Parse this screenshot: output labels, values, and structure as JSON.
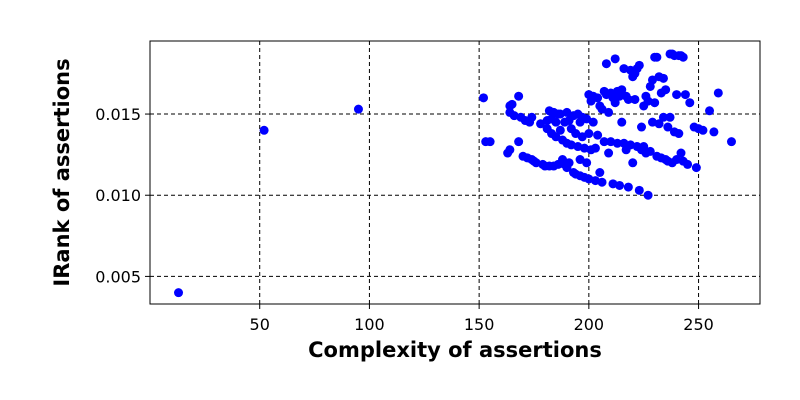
{
  "chart_data": {
    "type": "scatter",
    "title": "",
    "xlabel": "Complexity of assertions",
    "ylabel": "IRank of assertions",
    "xlim": [
      0,
      278
    ],
    "ylim": [
      0.0033,
      0.0195
    ],
    "xticks": [
      50,
      100,
      150,
      200,
      250
    ],
    "yticks": [
      0.005,
      0.01,
      0.015
    ],
    "xtick_labels": [
      "50",
      "100",
      "150",
      "200",
      "250"
    ],
    "ytick_labels": [
      "0.005",
      "0.010",
      "0.015"
    ],
    "grid": true,
    "grid_style": "dashed",
    "marker_color": "#0000ff",
    "series": [
      {
        "x": [
          13,
          52,
          95,
          152,
          153,
          155,
          163,
          164,
          164,
          164,
          165,
          166,
          168,
          168,
          169,
          170,
          171,
          172,
          173,
          174,
          174,
          175,
          176,
          178,
          179,
          180,
          181,
          181,
          182,
          182,
          183,
          183,
          184,
          184,
          185,
          185,
          186,
          186,
          187,
          187,
          188,
          188,
          189,
          189,
          190,
          190,
          190,
          191,
          191,
          192,
          192,
          193,
          193,
          194,
          194,
          195,
          195,
          196,
          196,
          196,
          197,
          197,
          198,
          198,
          199,
          199,
          200,
          200,
          200,
          201,
          201,
          202,
          202,
          203,
          203,
          204,
          204,
          205,
          205,
          206,
          206,
          207,
          207,
          208,
          208,
          209,
          209,
          210,
          210,
          211,
          211,
          212,
          212,
          213,
          213,
          214,
          214,
          215,
          215,
          216,
          216,
          217,
          217,
          218,
          218,
          219,
          219,
          220,
          220,
          221,
          221,
          222,
          222,
          223,
          223,
          224,
          224,
          225,
          225,
          226,
          226,
          227,
          227,
          228,
          228,
          229,
          229,
          230,
          230,
          231,
          231,
          232,
          232,
          233,
          233,
          234,
          234,
          235,
          235,
          236,
          236,
          237,
          237,
          238,
          238,
          239,
          239,
          240,
          240,
          241,
          241,
          242,
          242,
          243,
          243,
          244,
          245,
          246,
          248,
          249,
          250,
          252,
          255,
          257,
          259,
          265
        ],
        "y": [
          0.004,
          0.014,
          0.0153,
          0.016,
          0.0133,
          0.0133,
          0.0126,
          0.0128,
          0.0155,
          0.0151,
          0.0156,
          0.0149,
          0.0161,
          0.0133,
          0.0148,
          0.0124,
          0.0146,
          0.0123,
          0.0145,
          0.0122,
          0.0148,
          0.0121,
          0.012,
          0.0144,
          0.0119,
          0.0118,
          0.0141,
          0.0146,
          0.0152,
          0.0118,
          0.0138,
          0.0147,
          0.0151,
          0.0118,
          0.0136,
          0.0145,
          0.015,
          0.0119,
          0.014,
          0.015,
          0.0134,
          0.0122,
          0.0145,
          0.0119,
          0.0151,
          0.0132,
          0.0117,
          0.0146,
          0.012,
          0.0141,
          0.0131,
          0.0149,
          0.0114,
          0.0138,
          0.0113,
          0.015,
          0.013,
          0.0145,
          0.0112,
          0.0122,
          0.0148,
          0.0136,
          0.0129,
          0.0111,
          0.0147,
          0.012,
          0.0162,
          0.0138,
          0.011,
          0.0158,
          0.0128,
          0.0161,
          0.0145,
          0.0129,
          0.0109,
          0.016,
          0.0137,
          0.0155,
          0.0114,
          0.0153,
          0.0108,
          0.0164,
          0.0133,
          0.0181,
          0.0162,
          0.0151,
          0.0126,
          0.0163,
          0.0133,
          0.016,
          0.0107,
          0.0184,
          0.0157,
          0.0164,
          0.0132,
          0.0161,
          0.0106,
          0.0165,
          0.0145,
          0.0178,
          0.0132,
          0.0161,
          0.0128,
          0.0159,
          0.0105,
          0.0177,
          0.0131,
          0.0173,
          0.012,
          0.0175,
          0.0159,
          0.0178,
          0.013,
          0.018,
          0.0103,
          0.0142,
          0.0128,
          0.0155,
          0.013,
          0.0161,
          0.0126,
          0.0158,
          0.01,
          0.0167,
          0.0127,
          0.0171,
          0.0145,
          0.0185,
          0.0157,
          0.0185,
          0.0124,
          0.0173,
          0.0144,
          0.0163,
          0.0123,
          0.0172,
          0.0148,
          0.0165,
          0.0122,
          0.0142,
          0.0121,
          0.0187,
          0.0148,
          0.0187,
          0.012,
          0.0186,
          0.0139,
          0.0162,
          0.0122,
          0.0186,
          0.0138,
          0.0186,
          0.0126,
          0.0185,
          0.0121,
          0.0162,
          0.0119,
          0.0157,
          0.0142,
          0.0117,
          0.0141,
          0.014,
          0.0152,
          0.0139,
          0.0163,
          0.0133
        ]
      }
    ]
  }
}
